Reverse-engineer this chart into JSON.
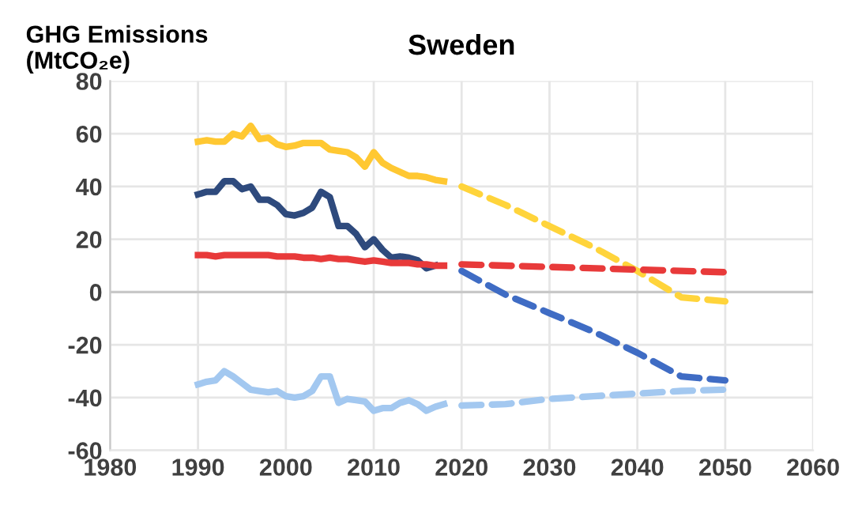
{
  "chart_data": {
    "type": "line",
    "title": "Sweden",
    "ylabel": "GHG Emissions\n(MtCO₂e)",
    "xlim": [
      1980,
      2060
    ],
    "xticks": [
      1980,
      1990,
      2000,
      2010,
      2020,
      2030,
      2040,
      2050,
      2060
    ],
    "ylim": [
      -60,
      80
    ],
    "yticks": [
      -60,
      -40,
      -20,
      0,
      20,
      40,
      60,
      80
    ],
    "grid": true,
    "marker": "none",
    "series": [
      {
        "color": "#ffc832",
        "line_style": "solid",
        "x": [
          1990,
          1991,
          1992,
          1993,
          1994,
          1995,
          1996,
          1997,
          1998,
          1999,
          2000,
          2001,
          2002,
          2003,
          2004,
          2005,
          2006,
          2007,
          2008,
          2009,
          2010,
          2011,
          2012,
          2013,
          2014,
          2015,
          2016,
          2017,
          2018
        ],
        "values": [
          57,
          57.5,
          57,
          57,
          60,
          59,
          63,
          58,
          58.5,
          56,
          55,
          55.5,
          56.5,
          56.5,
          56.5,
          54,
          53.5,
          53,
          51,
          47.5,
          53,
          49,
          47,
          45.5,
          44,
          44,
          43.5,
          42.5,
          42
        ]
      },
      {
        "color": "#2e4a7d",
        "line_style": "solid",
        "x": [
          1990,
          1991,
          1992,
          1993,
          1994,
          1995,
          1996,
          1997,
          1998,
          1999,
          2000,
          2001,
          2002,
          2003,
          2004,
          2005,
          2006,
          2007,
          2008,
          2009,
          2010,
          2011,
          2012,
          2013,
          2014,
          2015,
          2016,
          2017
        ],
        "values": [
          37,
          38,
          38,
          42,
          42,
          39,
          40,
          35,
          35,
          33,
          29.5,
          29,
          30,
          32,
          38,
          36,
          25,
          25,
          22,
          17,
          20,
          16,
          13,
          13.5,
          13,
          12,
          9,
          10
        ]
      },
      {
        "color": "#e83a3a",
        "line_style": "solid",
        "x": [
          1990,
          1991,
          1992,
          1993,
          1994,
          1995,
          1996,
          1997,
          1998,
          1999,
          2000,
          2001,
          2002,
          2003,
          2004,
          2005,
          2006,
          2007,
          2008,
          2009,
          2010,
          2011,
          2012,
          2013,
          2014,
          2015,
          2016,
          2017,
          2018
        ],
        "values": [
          14,
          14,
          13.5,
          14,
          14,
          14,
          14,
          14,
          14,
          13.5,
          13.5,
          13.5,
          13,
          13,
          12.5,
          13,
          12.5,
          12.5,
          12,
          11.5,
          12,
          11.5,
          11,
          11,
          11,
          10.5,
          10.5,
          10,
          10
        ]
      },
      {
        "color": "#a3c8f0",
        "line_style": "solid",
        "x": [
          1990,
          1991,
          1992,
          1993,
          1994,
          1995,
          1996,
          1997,
          1998,
          1999,
          2000,
          2001,
          2002,
          2003,
          2004,
          2005,
          2006,
          2007,
          2008,
          2009,
          2010,
          2011,
          2012,
          2013,
          2014,
          2015,
          2016,
          2017,
          2018
        ],
        "values": [
          -35,
          -34,
          -33.5,
          -30,
          -32,
          -34.5,
          -37,
          -37.5,
          -38,
          -37.5,
          -39.5,
          -40,
          -39.5,
          -37.5,
          -32,
          -32,
          -42,
          -40.5,
          -41,
          -41.5,
          -45,
          -44,
          -44,
          -42,
          -41,
          -42.5,
          -45,
          -43.5,
          -42.5
        ]
      },
      {
        "color": "#ffd43b",
        "line_style": "dashed",
        "x": [
          2020,
          2025,
          2030,
          2035,
          2040,
          2045,
          2050
        ],
        "values": [
          40,
          33,
          25,
          17,
          8,
          -2,
          -3.5
        ]
      },
      {
        "color": "#3f6cc4",
        "line_style": "dashed",
        "x": [
          2020,
          2025,
          2030,
          2035,
          2040,
          2045,
          2050
        ],
        "values": [
          8,
          -1,
          -8,
          -15,
          -23,
          -32,
          -33.5
        ]
      },
      {
        "color": "#e83a3a",
        "line_style": "dashed",
        "x": [
          2020,
          2030,
          2040,
          2050
        ],
        "values": [
          10.5,
          9.5,
          8.5,
          7.5
        ]
      },
      {
        "color": "#a3c8f0",
        "line_style": "dashed",
        "x": [
          2020,
          2025,
          2030,
          2035,
          2040,
          2045,
          2050
        ],
        "values": [
          -43,
          -42.5,
          -40.5,
          -39.5,
          -38.5,
          -37.5,
          -37
        ]
      }
    ]
  }
}
